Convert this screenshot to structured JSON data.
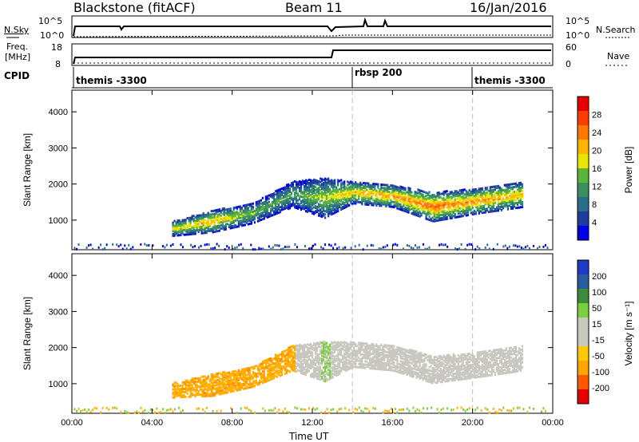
{
  "header": {
    "radar": "Blackstone (fitACF)",
    "beam": "Beam 11",
    "date": "16/Jan/2016"
  },
  "panels": {
    "nsky_label": "N.Sky",
    "nsearch_label": "N.Search",
    "freq_label_1": "Freq.",
    "freq_label_2": "[MHz]",
    "nave_label": "Nave",
    "cpid_label": "CPID",
    "nsky_ticks": [
      "10^5",
      "10^0"
    ],
    "nsearch_ticks": [
      "10^5",
      "10^0"
    ],
    "freq_ticks": [
      "18",
      "8"
    ],
    "nave_ticks": [
      "60",
      "0"
    ]
  },
  "cpid": [
    {
      "label": "themis -3300",
      "start_hour": 0
    },
    {
      "label": "rbsp 200",
      "start_hour": 14
    },
    {
      "label": "themis -3300",
      "start_hour": 20
    }
  ],
  "colors": {
    "power_scale": [
      "#0000e6",
      "#1e3ca0",
      "#2a6e8c",
      "#3c9060",
      "#5cb43c",
      "#e6e600",
      "#ffb400",
      "#ff7800",
      "#ff3c00",
      "#e60000"
    ],
    "velocity_scale": [
      "#e60000",
      "#ff5a00",
      "#ffa500",
      "#ffc800",
      "#c8c8c0",
      "#c8c8c0",
      "#7ad03c",
      "#3c8c3c",
      "#2a5aa0",
      "#1e3cc8"
    ]
  },
  "chart_data": [
    {
      "type": "heatmap",
      "name": "power",
      "xlabel": "Time UT",
      "ylabel": "Slant Range [km]",
      "xlim_hours": [
        0,
        24
      ],
      "ylim_km": [
        180,
        4600
      ],
      "x_ticks": [
        "00:00",
        "04:00",
        "08:00",
        "12:00",
        "16:00",
        "20:00",
        "00:00"
      ],
      "y_ticks": [
        "1000",
        "2000",
        "3000",
        "4000"
      ],
      "colorbar_label": "Power [dB]",
      "colorbar_ticks": [
        "4",
        "8",
        "12",
        "16",
        "20",
        "24",
        "28"
      ],
      "scatter_band": [
        {
          "t": 5.0,
          "lo": 600,
          "hi": 1000,
          "peak": 18
        },
        {
          "t": 7.0,
          "lo": 700,
          "hi": 1300,
          "peak": 20
        },
        {
          "t": 9.0,
          "lo": 950,
          "hi": 1500,
          "peak": 14
        },
        {
          "t": 11.0,
          "lo": 1400,
          "hi": 2100,
          "peak": 12
        },
        {
          "t": 12.6,
          "lo": 1100,
          "hi": 2200,
          "peak": 16
        },
        {
          "t": 14.0,
          "lo": 1500,
          "hi": 2100,
          "peak": 20
        },
        {
          "t": 16.0,
          "lo": 1400,
          "hi": 2000,
          "peak": 22
        },
        {
          "t": 18.0,
          "lo": 1000,
          "hi": 1800,
          "peak": 24
        },
        {
          "t": 20.0,
          "lo": 1200,
          "hi": 1900,
          "peak": 22
        },
        {
          "t": 22.5,
          "lo": 1400,
          "hi": 2100,
          "peak": 20
        }
      ]
    },
    {
      "type": "heatmap",
      "name": "velocity",
      "xlabel": "Time UT",
      "ylabel": "Slant Range [km]",
      "xlim_hours": [
        0,
        24
      ],
      "ylim_km": [
        180,
        4600
      ],
      "x_ticks": [
        "00:00",
        "04:00",
        "08:00",
        "12:00",
        "16:00",
        "20:00",
        "00:00"
      ],
      "y_ticks": [
        "1000",
        "2000",
        "3000",
        "4000"
      ],
      "colorbar_label": "Velocity [m s⁻¹]",
      "colorbar_ticks": [
        "200",
        "100",
        "50",
        "15",
        "-15",
        "-50",
        "-100",
        "-200"
      ],
      "scatter_band": [
        {
          "t": 5.0,
          "lo": 650,
          "hi": 1050,
          "v": -50
        },
        {
          "t": 7.0,
          "lo": 700,
          "hi": 1300,
          "v": -50
        },
        {
          "t": 9.0,
          "lo": 950,
          "hi": 1500,
          "v": -50
        },
        {
          "t": 11.0,
          "lo": 1400,
          "hi": 2100,
          "v": -50
        },
        {
          "t": 12.6,
          "lo": 1100,
          "hi": 2200,
          "v": 50
        },
        {
          "t": 14.0,
          "lo": 1500,
          "hi": 2200,
          "v": 0
        },
        {
          "t": 16.0,
          "lo": 1400,
          "hi": 2100,
          "v": 0
        },
        {
          "t": 18.0,
          "lo": 1050,
          "hi": 1800,
          "v": 0
        },
        {
          "t": 20.0,
          "lo": 1200,
          "hi": 1900,
          "v": 0
        },
        {
          "t": 22.5,
          "lo": 1400,
          "hi": 2100,
          "v": 0
        }
      ]
    }
  ]
}
